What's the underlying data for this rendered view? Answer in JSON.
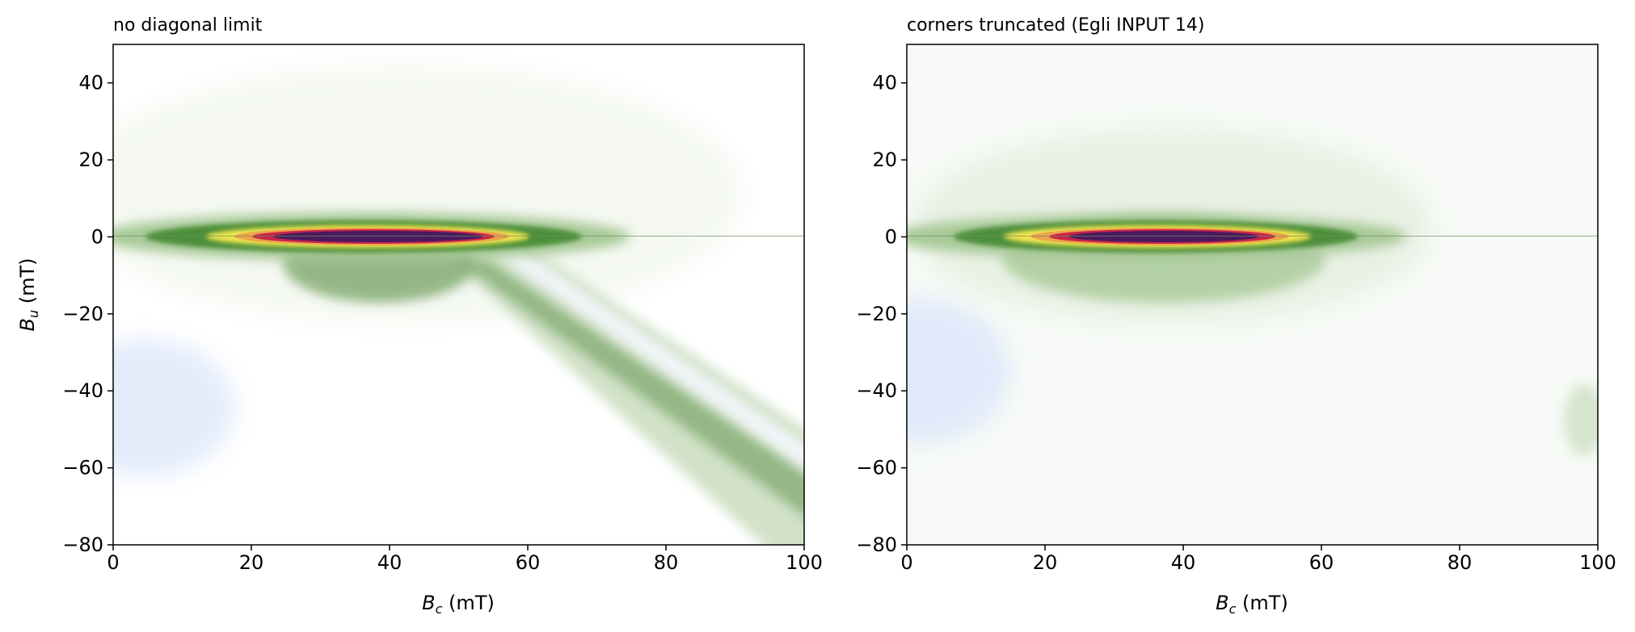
{
  "chart_data": [
    {
      "type": "heatmap",
      "title": "no diagonal limit",
      "xlabel_sym": "B",
      "xlabel_sub": "c",
      "xlabel_unit": " (mT)",
      "ylabel_sym": "B",
      "ylabel_sub": "u",
      "ylabel_unit": " (mT)",
      "xlim": [
        0,
        100
      ],
      "ylim": [
        -80,
        50
      ],
      "xticks": [
        0,
        20,
        40,
        60,
        80,
        100
      ],
      "yticks": [
        -80,
        -60,
        -40,
        -20,
        0,
        20,
        40
      ],
      "colormap": [
        "#4a1a5e",
        "#c7254a",
        "#f0a34a",
        "#f2e64f",
        "#3a7d28",
        "#f4f8f1",
        "#dde7fb"
      ],
      "peak": {
        "bc": 36,
        "bu": 0
      },
      "ridge": {
        "bc": [
          0,
          20,
          36,
          50,
          60,
          70,
          80
        ],
        "bu": [
          0,
          0,
          0,
          0,
          0,
          0,
          0
        ]
      },
      "diagonal_band": {
        "from": {
          "bc": 48,
          "bu": -12
        },
        "to": {
          "bc": 100,
          "bu": -70
        }
      },
      "negative_region": {
        "bc": 5,
        "bu": -42
      }
    },
    {
      "type": "heatmap",
      "title": "corners truncated (Egli INPUT 14)",
      "xlabel_sym": "B",
      "xlabel_sub": "c",
      "xlabel_unit": " (mT)",
      "xlim": [
        0,
        100
      ],
      "ylim": [
        -80,
        50
      ],
      "xticks": [
        0,
        20,
        40,
        60,
        80,
        100
      ],
      "yticks": [
        -80,
        -60,
        -40,
        -20,
        0,
        20,
        40
      ],
      "colormap": [
        "#4a1a5e",
        "#c7254a",
        "#f0a34a",
        "#f2e64f",
        "#3a7d28",
        "#f4f8f1",
        "#dde7fb"
      ],
      "peak": {
        "bc": 35,
        "bu": 0
      },
      "ridge": {
        "bc": [
          0,
          20,
          35,
          50,
          60,
          70,
          80
        ],
        "bu": [
          0,
          0,
          0,
          0,
          0,
          0,
          0
        ]
      },
      "negative_region": {
        "bc": 2,
        "bu": -35
      }
    }
  ]
}
